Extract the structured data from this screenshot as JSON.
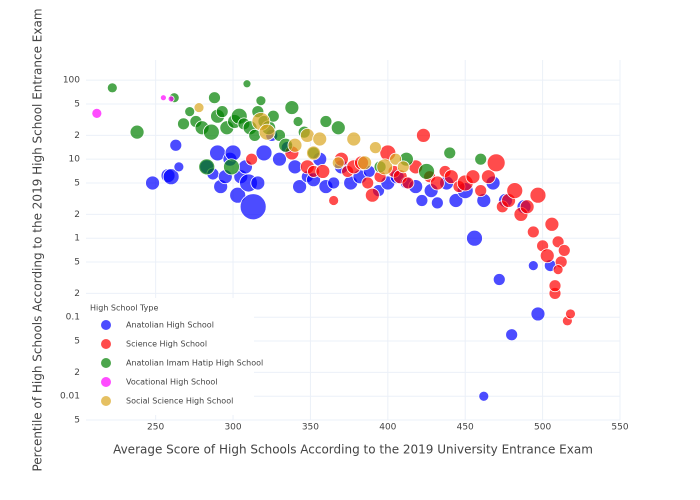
{
  "chart_data": {
    "type": "scatter",
    "x_label": "Average Score of High Schools According to the 2019 University Entrance Exam",
    "y_label": "Percentile of High Schools According to the 2019 High School Entrance Exam",
    "legend_title": "High School Type",
    "legend_position": "lower-left",
    "yscale": "log",
    "grid": true,
    "xlim": [
      205,
      550
    ],
    "xticks": [
      250,
      300,
      350,
      400,
      450,
      500,
      550
    ],
    "ylim": [
      0.005,
      180
    ],
    "yticks": [
      {
        "value": 0.005,
        "label": "5"
      },
      0.01,
      {
        "value": 0.02,
        "label": "2"
      },
      {
        "value": 0.05,
        "label": "5"
      },
      0.1,
      {
        "value": 0.2,
        "label": "2"
      },
      {
        "value": 0.5,
        "label": "5"
      },
      1,
      2,
      5,
      10,
      {
        "value": 20,
        "label": "2"
      },
      {
        "value": 50,
        "label": "5"
      },
      100
    ],
    "series": [
      {
        "name": "Anatolian High School",
        "color": "#0000ff",
        "x": [
          248,
          258,
          260,
          263,
          265,
          283,
          287,
          290,
          292,
          295,
          298,
          300,
          303,
          305,
          308,
          310,
          313,
          316,
          320,
          325,
          330,
          335,
          340,
          343,
          348,
          352,
          356,
          360,
          365,
          370,
          376,
          382,
          388,
          394,
          400,
          406,
          412,
          418,
          422,
          428,
          432,
          438,
          444,
          450,
          456,
          462,
          468,
          472,
          476,
          480,
          488,
          494,
          497,
          505,
          462
        ],
        "values": [
          5,
          6.2,
          6,
          15,
          8,
          8,
          6.5,
          12,
          4.5,
          6,
          10,
          12,
          3.5,
          6,
          8,
          5,
          2.5,
          5,
          12,
          20,
          10,
          14,
          8,
          4.5,
          6,
          5.5,
          10,
          4.5,
          5,
          8,
          5,
          6,
          7,
          4,
          5,
          6,
          5,
          4.5,
          3,
          4,
          2.8,
          5,
          3,
          4,
          1,
          3,
          5,
          0.3,
          3,
          0.06,
          2.5,
          0.45,
          0.11,
          0.45,
          0.01
        ],
        "sizes": [
          14,
          14,
          16,
          12,
          10,
          14,
          12,
          16,
          14,
          14,
          14,
          16,
          16,
          14,
          14,
          18,
          26,
          14,
          16,
          12,
          14,
          12,
          14,
          14,
          12,
          14,
          14,
          14,
          12,
          14,
          14,
          14,
          12,
          12,
          14,
          14,
          12,
          14,
          12,
          14,
          12,
          14,
          14,
          16,
          16,
          14,
          14,
          12,
          14,
          12,
          14,
          10,
          14,
          12,
          10
        ]
      },
      {
        "name": "Science High School",
        "color": "#ff0000",
        "x": [
          312,
          338,
          348,
          352,
          358,
          365,
          370,
          374,
          378,
          383,
          387,
          390,
          395,
          400,
          404,
          408,
          413,
          418,
          423,
          427,
          432,
          437,
          441,
          446,
          450,
          455,
          460,
          465,
          470,
          474,
          478,
          482,
          486,
          490,
          494,
          497,
          500,
          503,
          506,
          508,
          510,
          512,
          514,
          516,
          518,
          508,
          510
        ],
        "values": [
          10,
          12,
          8,
          7,
          7,
          3,
          10,
          7,
          8,
          9,
          5,
          3.5,
          6,
          12,
          7,
          6,
          5,
          8,
          20,
          6,
          5,
          7,
          6,
          4.5,
          5,
          6,
          4,
          6,
          9,
          2.5,
          3,
          4,
          2,
          2.5,
          1.2,
          3.5,
          0.8,
          0.6,
          1.5,
          0.2,
          0.9,
          0.5,
          0.7,
          0.09,
          0.11,
          0.25,
          0.4
        ],
        "sizes": [
          12,
          14,
          14,
          12,
          14,
          10,
          14,
          12,
          14,
          14,
          12,
          14,
          12,
          16,
          12,
          14,
          12,
          14,
          14,
          12,
          14,
          12,
          14,
          12,
          16,
          14,
          12,
          14,
          18,
          12,
          14,
          16,
          14,
          14,
          12,
          16,
          12,
          14,
          14,
          12,
          12,
          12,
          12,
          10,
          10,
          12,
          10
        ]
      },
      {
        "name": "Anatolian Imam Hatip High School",
        "color": "#008000",
        "x": [
          222,
          238,
          262,
          268,
          272,
          276,
          280,
          283,
          286,
          288,
          290,
          293,
          296,
          299,
          301,
          304,
          307,
          309,
          311,
          314,
          316,
          318,
          320,
          323,
          326,
          330,
          334,
          338,
          342,
          346,
          352,
          360,
          368,
          395,
          412,
          425,
          440,
          460
        ],
        "values": [
          80,
          22,
          60,
          28,
          40,
          30,
          25,
          8,
          22,
          60,
          35,
          40,
          25,
          8,
          30,
          35,
          28,
          90,
          25,
          20,
          40,
          55,
          30,
          25,
          35,
          20,
          15,
          45,
          30,
          22,
          12,
          30,
          25,
          8,
          10,
          7,
          12,
          10
        ],
        "sizes": [
          10,
          14,
          10,
          12,
          10,
          12,
          14,
          16,
          16,
          12,
          14,
          12,
          14,
          16,
          14,
          16,
          12,
          8,
          14,
          12,
          12,
          10,
          12,
          14,
          12,
          12,
          14,
          14,
          10,
          12,
          12,
          12,
          14,
          12,
          14,
          16,
          12,
          12
        ]
      },
      {
        "name": "Vocational High School",
        "color": "#ff00ff",
        "x": [
          212,
          255,
          260
        ],
        "values": [
          38,
          60,
          58
        ],
        "sizes": [
          10,
          6,
          6
        ]
      },
      {
        "name": "Social Science High School",
        "color": "#daa520",
        "x": [
          278,
          318,
          322,
          340,
          348,
          352,
          356,
          368,
          378,
          385,
          392,
          398,
          405,
          410
        ],
        "values": [
          45,
          30,
          22,
          15,
          20,
          12,
          18,
          9,
          18,
          9,
          14,
          8,
          10,
          8
        ],
        "sizes": [
          10,
          18,
          16,
          14,
          14,
          14,
          14,
          12,
          14,
          14,
          12,
          16,
          12,
          12
        ]
      }
    ]
  }
}
